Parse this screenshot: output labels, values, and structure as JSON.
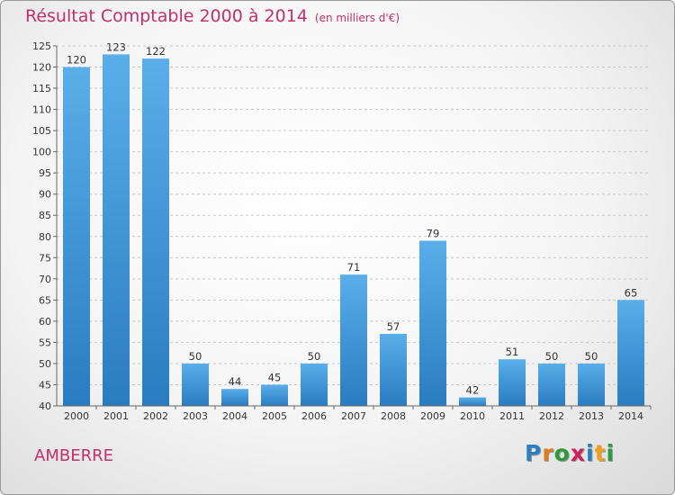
{
  "header": {
    "title": "Résultat Comptable 2000 à 2014",
    "unit": "(en milliers d'€)"
  },
  "footer": {
    "commune": "AMBERRE",
    "logo_letters": [
      "P",
      "r",
      "o",
      "x",
      "i",
      "t",
      "i"
    ],
    "logo_colors": [
      "#2b7fc0",
      "#e07b1a",
      "#2e9a3c",
      "#d21f5a",
      "#2b7fc0",
      "#f0a01a",
      "#2e9a3c"
    ]
  },
  "chart_data": {
    "type": "bar",
    "title": "Résultat Comptable 2000 à 2014",
    "subtitle": "(en milliers d'€)",
    "categories": [
      "2000",
      "2001",
      "2002",
      "2003",
      "2004",
      "2005",
      "2006",
      "2007",
      "2008",
      "2009",
      "2010",
      "2011",
      "2012",
      "2013",
      "2014"
    ],
    "values": [
      120,
      123,
      122,
      50,
      44,
      45,
      50,
      71,
      57,
      79,
      42,
      51,
      50,
      50,
      65
    ],
    "ylim": [
      40,
      125
    ],
    "yticks": [
      40,
      45,
      50,
      55,
      60,
      65,
      70,
      75,
      80,
      85,
      90,
      95,
      100,
      105,
      110,
      115,
      120,
      125
    ],
    "grid": true,
    "bar_color_top": "#5aaee9",
    "bar_color_bottom": "#2a7cc0"
  }
}
